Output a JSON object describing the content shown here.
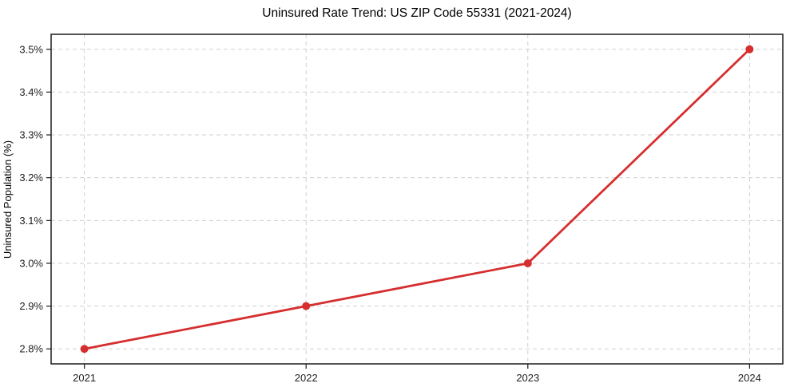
{
  "chart_data": {
    "type": "line",
    "title": "Uninsured Rate Trend: US ZIP Code 55331 (2021-2024)",
    "xlabel": "",
    "ylabel": "Uninsured Population (%)",
    "x": [
      2021,
      2022,
      2023,
      2024
    ],
    "values": [
      2.8,
      2.9,
      3.0,
      3.5
    ],
    "xticks": [
      2021,
      2022,
      2023,
      2024
    ],
    "xtick_labels": [
      "2021",
      "2022",
      "2023",
      "2024"
    ],
    "yticks": [
      2.8,
      2.9,
      3.0,
      3.1,
      3.2,
      3.3,
      3.4,
      3.5
    ],
    "ytick_labels": [
      "2.8%",
      "2.9%",
      "3.0%",
      "3.1%",
      "3.2%",
      "3.3%",
      "3.4%",
      "3.5%"
    ],
    "xlim": [
      2020.85,
      2024.15
    ],
    "ylim": [
      2.765,
      3.535
    ],
    "grid": true,
    "legend": "none",
    "colors": {
      "line": "#d62e2e",
      "marker": "#d62e2e",
      "grid": "#cfcfcf",
      "axis": "#1a1a1a",
      "text": "#1f1f1f",
      "background": "#ffffff"
    }
  }
}
